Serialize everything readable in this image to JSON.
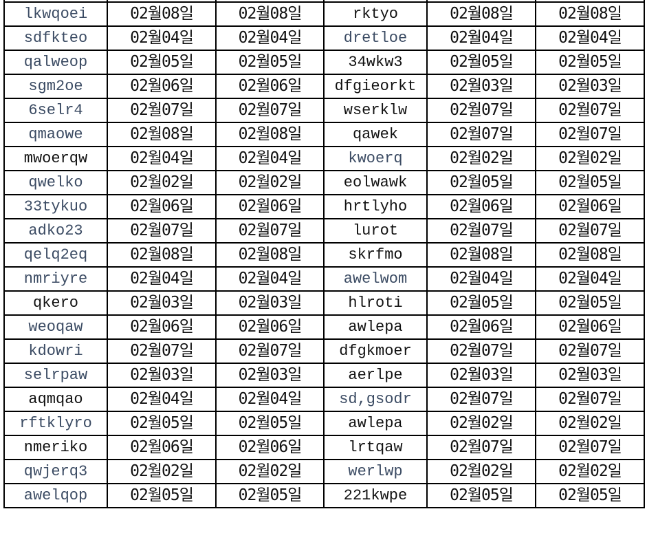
{
  "colors": {
    "text": "#111111",
    "muted_text": "#3b4b63",
    "grid": "#000000"
  },
  "rows": [
    {
      "name": "lkwqoei",
      "d1": "02월08일",
      "d2": "02월08일",
      "name2": "rktyo",
      "d3": "02월08일",
      "d4": "02월08일",
      "muted": true,
      "muted2": false
    },
    {
      "name": "sdfkteo",
      "d1": "02월04일",
      "d2": "02월04일",
      "name2": "dretloe",
      "d3": "02월04일",
      "d4": "02월04일",
      "muted": true,
      "muted2": true
    },
    {
      "name": "qalweop",
      "d1": "02월05일",
      "d2": "02월05일",
      "name2": "34wkw3",
      "d3": "02월05일",
      "d4": "02월05일",
      "muted": true,
      "muted2": false
    },
    {
      "name": "sgm2oe",
      "d1": "02월06일",
      "d2": "02월06일",
      "name2": "dfgieorkt",
      "d3": "02월03일",
      "d4": "02월03일",
      "muted": true,
      "muted2": false
    },
    {
      "name": "6selr4",
      "d1": "02월07일",
      "d2": "02월07일",
      "name2": "wserklw",
      "d3": "02월07일",
      "d4": "02월07일",
      "muted": true,
      "muted2": false
    },
    {
      "name": "qmaowe",
      "d1": "02월08일",
      "d2": "02월08일",
      "name2": "qawek",
      "d3": "02월07일",
      "d4": "02월07일",
      "muted": true,
      "muted2": false
    },
    {
      "name": "mwoerqw",
      "d1": "02월04일",
      "d2": "02월04일",
      "name2": "kwoerq",
      "d3": "02월02일",
      "d4": "02월02일",
      "muted": false,
      "muted2": true
    },
    {
      "name": "qwelko",
      "d1": "02월02일",
      "d2": "02월02일",
      "name2": "eolwawk",
      "d3": "02월05일",
      "d4": "02월05일",
      "muted": true,
      "muted2": false
    },
    {
      "name": "33tykuo",
      "d1": "02월06일",
      "d2": "02월06일",
      "name2": "hrtlyho",
      "d3": "02월06일",
      "d4": "02월06일",
      "muted": true,
      "muted2": false
    },
    {
      "name": "adko23",
      "d1": "02월07일",
      "d2": "02월07일",
      "name2": "lurot",
      "d3": "02월07일",
      "d4": "02월07일",
      "muted": true,
      "muted2": false
    },
    {
      "name": "qelq2eq",
      "d1": "02월08일",
      "d2": "02월08일",
      "name2": "skrfmo",
      "d3": "02월08일",
      "d4": "02월08일",
      "muted": true,
      "muted2": false
    },
    {
      "name": "nmriyre",
      "d1": "02월04일",
      "d2": "02월04일",
      "name2": "awelwom",
      "d3": "02월04일",
      "d4": "02월04일",
      "muted": true,
      "muted2": true
    },
    {
      "name": "qkero",
      "d1": "02월03일",
      "d2": "02월03일",
      "name2": "hlroti",
      "d3": "02월05일",
      "d4": "02월05일",
      "muted": false,
      "muted2": false
    },
    {
      "name": "weoqaw",
      "d1": "02월06일",
      "d2": "02월06일",
      "name2": "awlepa",
      "d3": "02월06일",
      "d4": "02월06일",
      "muted": true,
      "muted2": false
    },
    {
      "name": "kdowri",
      "d1": "02월07일",
      "d2": "02월07일",
      "name2": "dfgkmoer",
      "d3": "02월07일",
      "d4": "02월07일",
      "muted": true,
      "muted2": false
    },
    {
      "name": "selrpaw",
      "d1": "02월03일",
      "d2": "02월03일",
      "name2": "aerlpe",
      "d3": "02월03일",
      "d4": "02월03일",
      "muted": true,
      "muted2": false
    },
    {
      "name": "aqmqao",
      "d1": "02월04일",
      "d2": "02월04일",
      "name2": "sd,gsodr",
      "d3": "02월07일",
      "d4": "02월07일",
      "muted": false,
      "muted2": true
    },
    {
      "name": "rftklyro",
      "d1": "02월05일",
      "d2": "02월05일",
      "name2": "awlepa",
      "d3": "02월02일",
      "d4": "02월02일",
      "muted": true,
      "muted2": false
    },
    {
      "name": "nmeriko",
      "d1": "02월06일",
      "d2": "02월06일",
      "name2": "lrtqaw",
      "d3": "02월07일",
      "d4": "02월07일",
      "muted": false,
      "muted2": false
    },
    {
      "name": "qwjerq3",
      "d1": "02월02일",
      "d2": "02월02일",
      "name2": "werlwp",
      "d3": "02월02일",
      "d4": "02월02일",
      "muted": true,
      "muted2": true
    },
    {
      "name": "awelqop",
      "d1": "02월05일",
      "d2": "02월05일",
      "name2": "221kwpe",
      "d3": "02월05일",
      "d4": "02월05일",
      "muted": true,
      "muted2": false
    }
  ]
}
